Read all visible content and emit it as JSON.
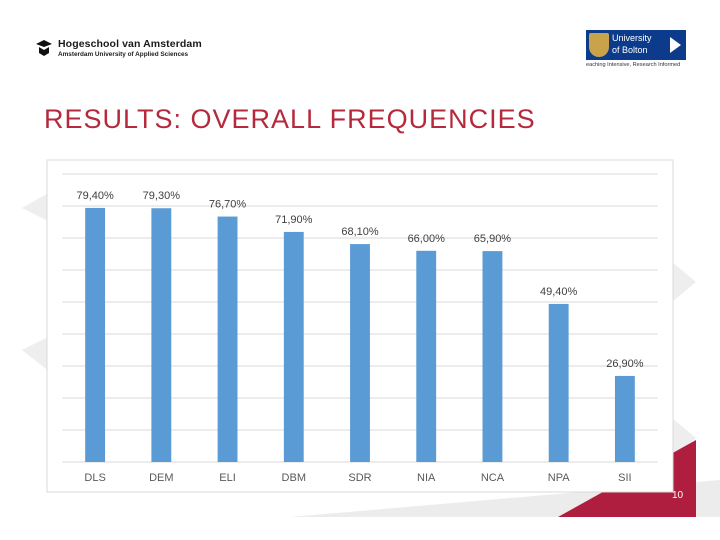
{
  "header": {
    "hva_name": "Hogeschool van Amsterdam",
    "hva_subtitle": "Amsterdam University of Applied Sciences",
    "bolton_line1": "University",
    "bolton_line2": "of Bolton",
    "bolton_tagline": "eaching Intensive, Research Informed"
  },
  "slide": {
    "title": "RESULTS: OVERALL FREQUENCIES",
    "page_number": "10"
  },
  "colors": {
    "bar": "#5b9bd5",
    "title": "#b5293c",
    "accent": "#b01e3f"
  },
  "chart_data": {
    "type": "bar",
    "categories": [
      "DLS",
      "DEM",
      "ELI",
      "DBM",
      "SDR",
      "NIA",
      "NCA",
      "NPA",
      "SII"
    ],
    "values": [
      79.4,
      79.3,
      76.7,
      71.9,
      68.1,
      66.0,
      65.9,
      49.4,
      26.9
    ],
    "data_labels": [
      "79,40%",
      "79,30%",
      "76,70%",
      "71,90%",
      "68,10%",
      "66,00%",
      "65,90%",
      "49,40%",
      "26,90%"
    ],
    "ylim": [
      0,
      90
    ],
    "grid": true
  }
}
